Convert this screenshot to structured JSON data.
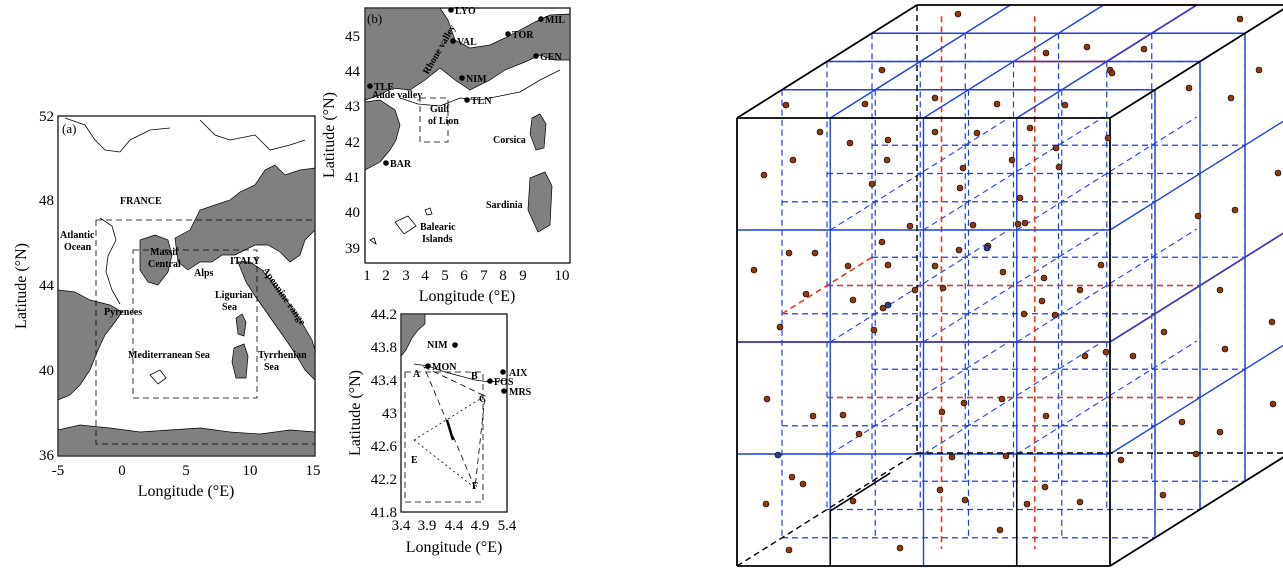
{
  "panel_a": {
    "label": "(a)",
    "x_ticks": [
      "-5",
      "0",
      "5",
      "10",
      "15"
    ],
    "y_ticks": [
      "52",
      "48",
      "44",
      "40",
      "36"
    ],
    "xlabel": "Longitude (°E)",
    "ylabel": "Latitude (°N)",
    "places": {
      "france": "FRANCE",
      "atlantic1": "Atlantic",
      "atlantic2": "Ocean",
      "massif1": "Massif",
      "massif2": "Central",
      "italy": "ITALY",
      "alps": "Alps",
      "apennines": "Apennine range",
      "pyrenees": "Pyrenees",
      "ligurian1": "Ligurian",
      "ligurian2": "Sea",
      "tyrrhenian1": "Tyrrhenian",
      "tyrrhenian2": "Sea",
      "med": "Mediterranean Sea"
    }
  },
  "panel_b": {
    "label": "(b)",
    "x_ticks": [
      "1",
      "2",
      "3",
      "4",
      "5",
      "6",
      "7",
      "8",
      "9",
      "10"
    ],
    "y_ticks": [
      "45",
      "44",
      "43",
      "42",
      "41",
      "40",
      "39"
    ],
    "xlabel": "Longitude (°E)",
    "ylabel": "Latitude (°N)",
    "cities": {
      "lyo": "LYO",
      "mil": "MIL",
      "val": "VAL",
      "tor": "TOR",
      "gen": "GEN",
      "nim": "NIM",
      "tle": "TLE",
      "tln": "TLN",
      "bar": "BAR"
    },
    "places": {
      "rhone": "Rhone valley",
      "aude": "Aude valley",
      "gulf1": "Gulf",
      "gulf2": "of Lion",
      "corsica": "Corsica",
      "sardinia": "Sardinia",
      "balearic1": "Balearic",
      "balearic2": "Islands"
    }
  },
  "panel_c": {
    "x_ticks": [
      "3.4",
      "3.9",
      "4.4",
      "4.9",
      "5.4"
    ],
    "y_ticks": [
      "44.2",
      "43.8",
      "43.4",
      "43",
      "42.6",
      "42.2",
      "41.8"
    ],
    "xlabel": "Longitude (°E)",
    "ylabel": "Latitude (°N)",
    "cities": {
      "nim": "NIM",
      "mon": "MON",
      "aix": "AIX",
      "fos": "FOS",
      "mrs": "MRS"
    },
    "points": {
      "a": "A",
      "b": "B",
      "c": "C",
      "e": "E",
      "f": "F"
    }
  },
  "cube": {
    "colors": {
      "edge": "#000000",
      "blue": "#1f3fe0",
      "red": "#e83a1a",
      "particle": "#8b3a0e",
      "particle_alt": "#2f3f8f"
    }
  }
}
